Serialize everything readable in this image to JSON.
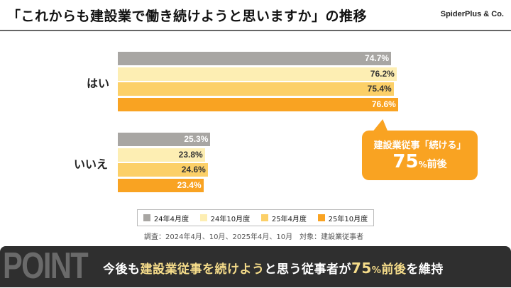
{
  "header": {
    "title": "「これからも建設業で働き続けようと思いますか」の推移",
    "brand": "SpiderPlus & Co."
  },
  "colors": {
    "gray": "#a8a6a3",
    "light": "#fdeeb3",
    "mid": "#fcd068",
    "orange": "#f9a322"
  },
  "chart_data": {
    "type": "bar",
    "orientation": "horizontal",
    "title": "「これからも建設業で働き続けようと思いますか」の推移",
    "categories": [
      "はい",
      "いいえ"
    ],
    "series": [
      {
        "name": "24年4月度",
        "values": [
          74.7,
          25.3
        ],
        "labels": [
          "74.7%",
          "25.3%"
        ]
      },
      {
        "name": "24年10月度",
        "values": [
          76.2,
          23.8
        ],
        "labels": [
          "76.2%",
          "23.8%"
        ]
      },
      {
        "name": "25年4月度",
        "values": [
          75.4,
          24.6
        ],
        "labels": [
          "75.4%",
          "24.6%"
        ]
      },
      {
        "name": "25年10月度",
        "values": [
          76.6,
          23.4
        ],
        "labels": [
          "76.6%",
          "23.4%"
        ]
      }
    ],
    "xlim": [
      0,
      100
    ],
    "legend": "bottom",
    "grid": false
  },
  "callout": {
    "line1": "建設業従事「続ける」",
    "num": "75",
    "pct": "%",
    "suffix": "前後"
  },
  "note": "調査：2024年4月、10月、2025年4月、10月　対象：建設業従事者",
  "banner": {
    "watermark": "POINT",
    "p1": "今後も",
    "p2": "建設業従事を続けよう",
    "p3": "と思う従事者が",
    "p4": "75",
    "p5": "%",
    "p6": "前後",
    "p7": "を維持"
  }
}
